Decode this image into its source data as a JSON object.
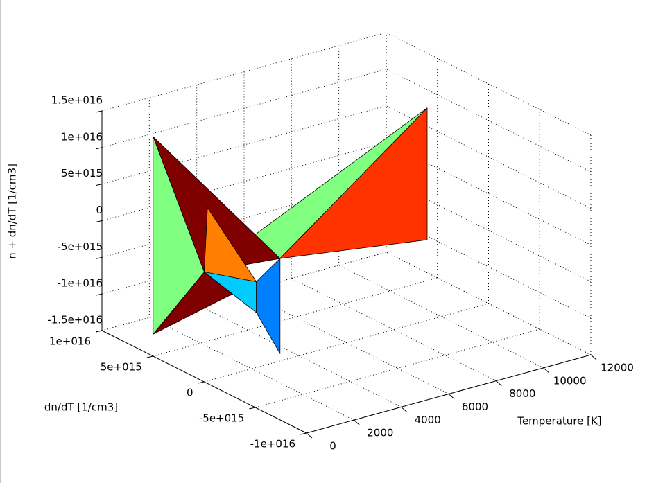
{
  "chart_data": {
    "type": "surface3d",
    "xlabel": "Temperature [K]",
    "ylabel": "dn/dT [1/cm3]",
    "zlabel": "n + dn/dT [1/cm3]",
    "xlim": [
      0,
      12000
    ],
    "xticks": [
      0,
      2000,
      4000,
      6000,
      8000,
      10000,
      12000
    ],
    "ylim": [
      -1e+16,
      1e+16
    ],
    "yticks": [
      {
        "value": -1e+16,
        "label": "-1e+016"
      },
      {
        "value": -5000000000000000.0,
        "label": "-5e+015"
      },
      0,
      {
        "value": 5000000000000000.0,
        "label": "5e+015"
      },
      {
        "value": 1e+16,
        "label": "1e+016"
      }
    ],
    "zlim": [
      -1.5e+16,
      1.5e+16
    ],
    "zticks": [
      {
        "value": -1.5e+16,
        "label": "-1.5e+016"
      },
      {
        "value": -1e+16,
        "label": "-1e+016"
      },
      {
        "value": -5000000000000000.0,
        "label": "-5e+015"
      },
      0,
      {
        "value": 5000000000000000.0,
        "label": "5e+015"
      },
      {
        "value": 1e+16,
        "label": "1e+016"
      },
      {
        "value": 1.5e+16,
        "label": "1.5e+016"
      }
    ],
    "grid": true,
    "faces": [
      {
        "color": "#80ff80",
        "vertices": [
          [
            0,
            0,
            0
          ],
          [
            12000,
            6000000000000000.0,
            7500000000000000.0
          ],
          [
            3200,
            0,
            -1000000000000000.0
          ]
        ]
      },
      {
        "color": "#800000",
        "vertices": [
          [
            0,
            5000000000000000.0,
            -1.2e+16
          ],
          [
            0,
            0,
            0
          ],
          [
            2200,
            0,
            -3300000000000000.0
          ]
        ]
      },
      {
        "color": "#ff3300",
        "vertices": [
          [
            3200,
            0,
            -1000000000000000.0
          ],
          [
            12000,
            6000000000000000.0,
            7500000000000000.0
          ],
          [
            12000,
            6000000000000000.0,
            -1.05e+16
          ]
        ]
      },
      {
        "color": "#800000",
        "vertices": [
          [
            0,
            5000000000000000.0,
            1.5e+16
          ],
          [
            0,
            0,
            0
          ],
          [
            3200,
            0,
            -1000000000000000.0
          ]
        ]
      },
      {
        "color": "#ff8000",
        "vertices": [
          [
            1000,
            2000000000000000.0,
            6500000000000000.0
          ],
          [
            0,
            0,
            0
          ],
          [
            2200,
            0,
            -3300000000000000.0
          ]
        ]
      },
      {
        "color": "#80ff80",
        "vertices": [
          [
            0,
            5000000000000000.0,
            1.5e+16
          ],
          [
            0,
            5000000000000000.0,
            -1.2e+16
          ],
          [
            0,
            0,
            0
          ]
        ]
      },
      {
        "color": "#00ccff",
        "vertices": [
          [
            0,
            0,
            0
          ],
          [
            2200,
            0,
            -3300000000000000.0
          ],
          [
            2200,
            0,
            -7500000000000000.0
          ]
        ]
      },
      {
        "color": "#0080ff",
        "vertices": [
          [
            2200,
            0,
            -3300000000000000.0
          ],
          [
            3200,
            0,
            -1000000000000000.0
          ],
          [
            3200,
            0,
            -1.4e+16
          ],
          [
            2200,
            0,
            -7500000000000000.0
          ]
        ]
      }
    ]
  }
}
